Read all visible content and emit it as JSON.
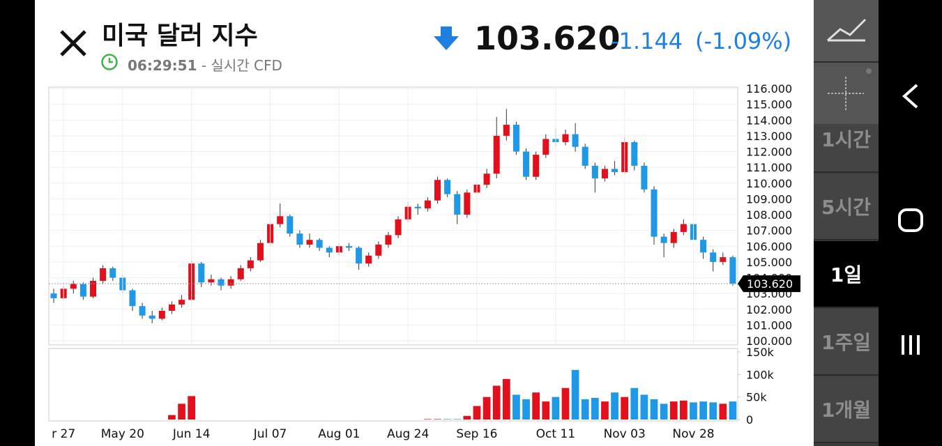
{
  "header": {
    "title": "미국 달러 지수",
    "time": "06:29:51",
    "source": "- 실시간 CFD",
    "price": "103.620",
    "change": "-1.144",
    "change_pct": "(-1.09%)"
  },
  "sidebar": {
    "timeframes": [
      "1시간",
      "5시간",
      "1일",
      "1주일",
      "1개월"
    ],
    "selected": 2
  },
  "chart_data": {
    "type": "candlestick",
    "categories": [
      null,
      "r 27",
      null,
      null,
      null,
      null,
      null,
      "May 20",
      null,
      null,
      null,
      null,
      null,
      null,
      "Jun 14",
      null,
      null,
      null,
      null,
      null,
      null,
      null,
      "Jul 07",
      null,
      null,
      null,
      null,
      null,
      null,
      "Aug 01",
      null,
      null,
      null,
      null,
      null,
      null,
      "Aug 24",
      null,
      null,
      null,
      null,
      null,
      null,
      "Sep 16",
      null,
      null,
      null,
      null,
      null,
      null,
      null,
      "Oct 11",
      null,
      null,
      null,
      null,
      null,
      null,
      "Nov 03",
      null,
      null,
      null,
      null,
      null,
      null,
      "Nov 28",
      null,
      null,
      null,
      null
    ],
    "candles": [
      [
        103.0,
        103.3,
        102.4,
        102.7
      ],
      [
        102.7,
        103.5,
        102.6,
        103.3
      ],
      [
        103.3,
        103.8,
        103.0,
        103.6
      ],
      [
        103.6,
        103.7,
        102.6,
        102.8
      ],
      [
        102.8,
        104.0,
        102.7,
        103.8
      ],
      [
        103.8,
        104.8,
        103.6,
        104.6
      ],
      [
        104.6,
        104.7,
        103.8,
        104.0
      ],
      [
        104.0,
        104.2,
        103.0,
        103.2
      ],
      [
        103.2,
        103.3,
        101.9,
        102.2
      ],
      [
        102.2,
        102.4,
        101.4,
        101.6
      ],
      [
        101.6,
        101.9,
        101.1,
        101.4
      ],
      [
        101.4,
        102.1,
        101.3,
        101.9
      ],
      [
        101.9,
        102.5,
        101.7,
        102.3
      ],
      [
        102.3,
        102.9,
        102.1,
        102.6
      ],
      [
        102.6,
        105.1,
        102.5,
        104.9
      ],
      [
        104.9,
        105.0,
        103.4,
        103.7
      ],
      [
        103.7,
        104.2,
        103.5,
        103.9
      ],
      [
        103.9,
        104.0,
        103.2,
        103.5
      ],
      [
        103.5,
        104.1,
        103.3,
        103.9
      ],
      [
        103.9,
        104.8,
        103.8,
        104.6
      ],
      [
        104.6,
        105.3,
        104.4,
        105.1
      ],
      [
        105.1,
        106.4,
        105.0,
        106.2
      ],
      [
        106.2,
        107.6,
        106.0,
        107.4
      ],
      [
        107.4,
        108.7,
        107.2,
        107.9
      ],
      [
        107.9,
        108.0,
        106.6,
        106.8
      ],
      [
        106.8,
        107.0,
        105.9,
        106.1
      ],
      [
        106.1,
        106.8,
        105.9,
        106.4
      ],
      [
        106.4,
        106.5,
        105.7,
        105.9
      ],
      [
        105.9,
        106.0,
        105.3,
        105.6
      ],
      [
        105.6,
        106.2,
        105.4,
        106.0
      ],
      [
        106.0,
        106.2,
        105.7,
        105.9
      ],
      [
        105.9,
        106.0,
        104.5,
        104.9
      ],
      [
        104.9,
        105.6,
        104.7,
        105.4
      ],
      [
        105.4,
        106.3,
        105.2,
        106.1
      ],
      [
        106.1,
        106.9,
        105.9,
        106.7
      ],
      [
        106.7,
        107.9,
        106.5,
        107.7
      ],
      [
        107.7,
        108.8,
        107.5,
        108.5
      ],
      [
        108.5,
        108.7,
        108.0,
        108.4
      ],
      [
        108.4,
        109.1,
        108.2,
        108.9
      ],
      [
        108.9,
        110.4,
        108.7,
        110.2
      ],
      [
        110.2,
        110.3,
        109.1,
        109.3
      ],
      [
        109.3,
        109.5,
        107.4,
        108.0
      ],
      [
        108.0,
        109.6,
        107.8,
        109.4
      ],
      [
        109.4,
        110.1,
        109.2,
        109.9
      ],
      [
        109.9,
        110.9,
        109.7,
        110.6
      ],
      [
        110.6,
        114.2,
        110.3,
        113.0
      ],
      [
        113.0,
        114.7,
        112.7,
        113.7
      ],
      [
        113.7,
        113.9,
        111.8,
        112.0
      ],
      [
        112.0,
        112.2,
        110.2,
        110.4
      ],
      [
        110.4,
        112.0,
        110.2,
        111.8
      ],
      [
        111.8,
        113.1,
        111.6,
        112.8
      ],
      [
        112.8,
        113.5,
        112.3,
        112.6
      ],
      [
        112.6,
        113.4,
        112.4,
        113.1
      ],
      [
        113.1,
        113.8,
        112.0,
        112.3
      ],
      [
        112.3,
        112.5,
        110.9,
        111.1
      ],
      [
        111.1,
        111.3,
        109.4,
        110.3
      ],
      [
        110.3,
        111.1,
        110.1,
        110.9
      ],
      [
        110.9,
        111.4,
        110.5,
        110.7
      ],
      [
        110.7,
        112.9,
        110.6,
        112.6
      ],
      [
        112.6,
        112.7,
        110.8,
        111.1
      ],
      [
        111.1,
        111.3,
        109.4,
        109.6
      ],
      [
        109.6,
        109.8,
        106.1,
        106.6
      ],
      [
        106.6,
        106.8,
        105.3,
        106.2
      ],
      [
        106.2,
        107.1,
        105.9,
        106.9
      ],
      [
        106.9,
        107.7,
        106.7,
        107.4
      ],
      [
        107.4,
        107.5,
        106.1,
        106.4
      ],
      [
        106.4,
        106.6,
        105.2,
        105.6
      ],
      [
        105.6,
        105.8,
        104.4,
        105.0
      ],
      [
        105.0,
        105.6,
        104.8,
        105.3
      ],
      [
        105.3,
        105.4,
        103.5,
        103.62
      ]
    ],
    "volume": [
      0,
      0,
      0,
      0,
      0,
      0,
      0,
      0,
      0,
      0,
      0,
      0,
      10000,
      35000,
      52000,
      0,
      0,
      0,
      0,
      0,
      0,
      0,
      0,
      0,
      0,
      0,
      0,
      0,
      0,
      0,
      0,
      0,
      0,
      0,
      0,
      0,
      0,
      0,
      1000,
      1000,
      1000,
      1000,
      8000,
      30000,
      50000,
      75000,
      90000,
      55000,
      45000,
      60000,
      40000,
      50000,
      70000,
      110000,
      45000,
      48000,
      40000,
      60000,
      50000,
      70000,
      55000,
      45000,
      35000,
      40000,
      42000,
      38000,
      40000,
      38000,
      35000,
      40000
    ],
    "up_color": "#e3101c",
    "down_color": "#1f98e8",
    "ylim": [
      100,
      116
    ],
    "yticks": [
      {
        "value": 100,
        "label": "100.000"
      },
      {
        "value": 101,
        "label": "101.000"
      },
      {
        "value": 102,
        "label": "102.000"
      },
      {
        "value": 103,
        "label": "103.000"
      },
      {
        "value": 104,
        "label": "104.000"
      },
      {
        "value": 105,
        "label": "105.000"
      },
      {
        "value": 106,
        "label": "106.000"
      },
      {
        "value": 107,
        "label": "107.000"
      },
      {
        "value": 108,
        "label": "108.000"
      },
      {
        "value": 109,
        "label": "109.000"
      },
      {
        "value": 110,
        "label": "110.000"
      },
      {
        "value": 111,
        "label": "111.000"
      },
      {
        "value": 112,
        "label": "112.000"
      },
      {
        "value": 113,
        "label": "113.000"
      },
      {
        "value": 114,
        "label": "114.000"
      },
      {
        "value": 115,
        "label": "115.000"
      },
      {
        "value": 116,
        "label": "116.000"
      }
    ],
    "y2lim": [
      0,
      150000
    ],
    "y2ticks": [
      0,
      {
        "value": 50000,
        "label": "50k"
      },
      {
        "value": 100000,
        "label": "100k"
      },
      {
        "value": 150000,
        "label": "150k"
      }
    ],
    "grid": true
  }
}
